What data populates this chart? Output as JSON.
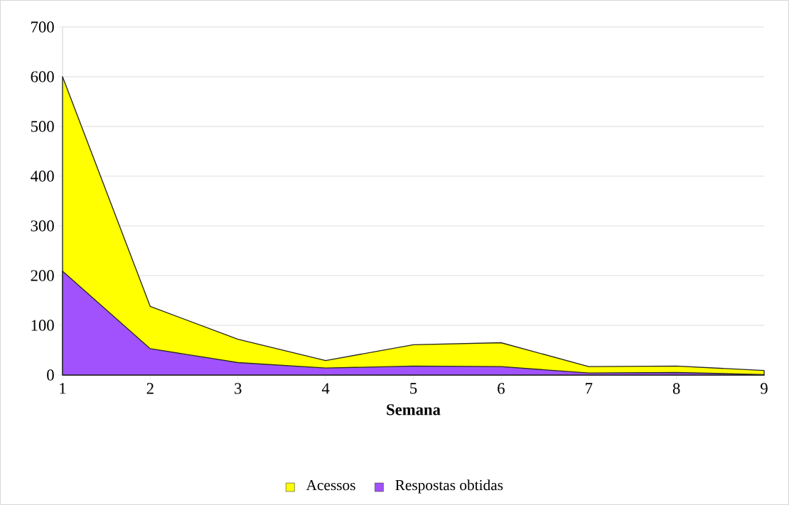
{
  "chart_data": {
    "type": "area",
    "xlabel": "Semana",
    "categories": [
      "1",
      "2",
      "3",
      "4",
      "5",
      "6",
      "7",
      "8",
      "9"
    ],
    "series": [
      {
        "name": "Acessos",
        "color": "#ffff00",
        "values": [
          600,
          138,
          72,
          29,
          61,
          65,
          17,
          18,
          9
        ]
      },
      {
        "name": "Respostas obtidas",
        "color": "#a152fc",
        "values": [
          209,
          53,
          25,
          14,
          18,
          17,
          4,
          5,
          1
        ]
      }
    ],
    "ylim": [
      0,
      700
    ],
    "yticks": [
      0,
      100,
      200,
      300,
      400,
      500,
      600,
      700
    ],
    "grid": "y",
    "legend": "bottom"
  }
}
